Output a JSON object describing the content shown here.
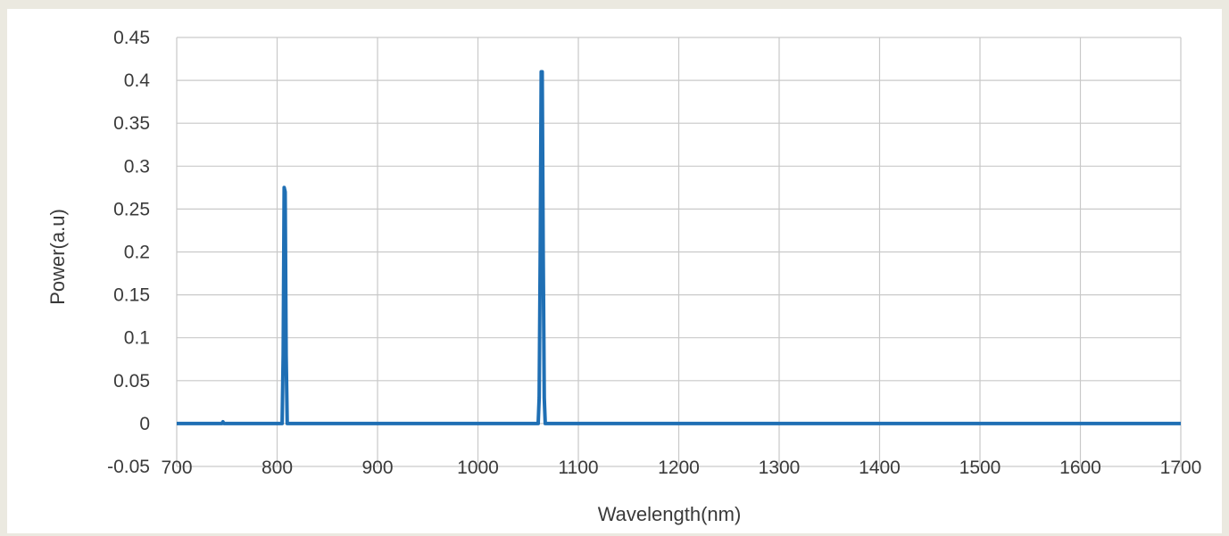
{
  "chart_data": {
    "type": "line",
    "title": "",
    "xlabel": "Wavelength(nm)",
    "ylabel": "Power(a.u)",
    "xlim": [
      700,
      1700
    ],
    "ylim": [
      -0.05,
      0.45
    ],
    "x_ticks": [
      700,
      800,
      900,
      1000,
      1100,
      1200,
      1300,
      1400,
      1500,
      1600,
      1700
    ],
    "y_ticks": [
      -0.05,
      0,
      0.05,
      0.1,
      0.15,
      0.2,
      0.25,
      0.3,
      0.35,
      0.4,
      0.45
    ],
    "x_tick_labels": [
      "700",
      "800",
      "900",
      "1000",
      "1100",
      "1200",
      "1300",
      "1400",
      "1500",
      "1600",
      "1700"
    ],
    "y_tick_labels": [
      "-0.05",
      "0",
      "0.05",
      "0.1",
      "0.15",
      "0.2",
      "0.25",
      "0.3",
      "0.35",
      "0.4",
      "0.45"
    ],
    "grid": true,
    "legend": "none",
    "series": [
      {
        "color": "#1f6fb4",
        "x": [
          700,
          745,
          746,
          747,
          800,
          805,
          806,
          807,
          808,
          809,
          810,
          811,
          1060,
          1061,
          1062,
          1063,
          1064,
          1065,
          1066,
          1067,
          1700
        ],
        "y": [
          0.0,
          0.0,
          0.002,
          0.0,
          0.0,
          0.0,
          0.08,
          0.275,
          0.27,
          0.08,
          0.0,
          0.0,
          0.0,
          0.03,
          0.2,
          0.41,
          0.41,
          0.2,
          0.03,
          0.0,
          0.0
        ]
      }
    ]
  }
}
